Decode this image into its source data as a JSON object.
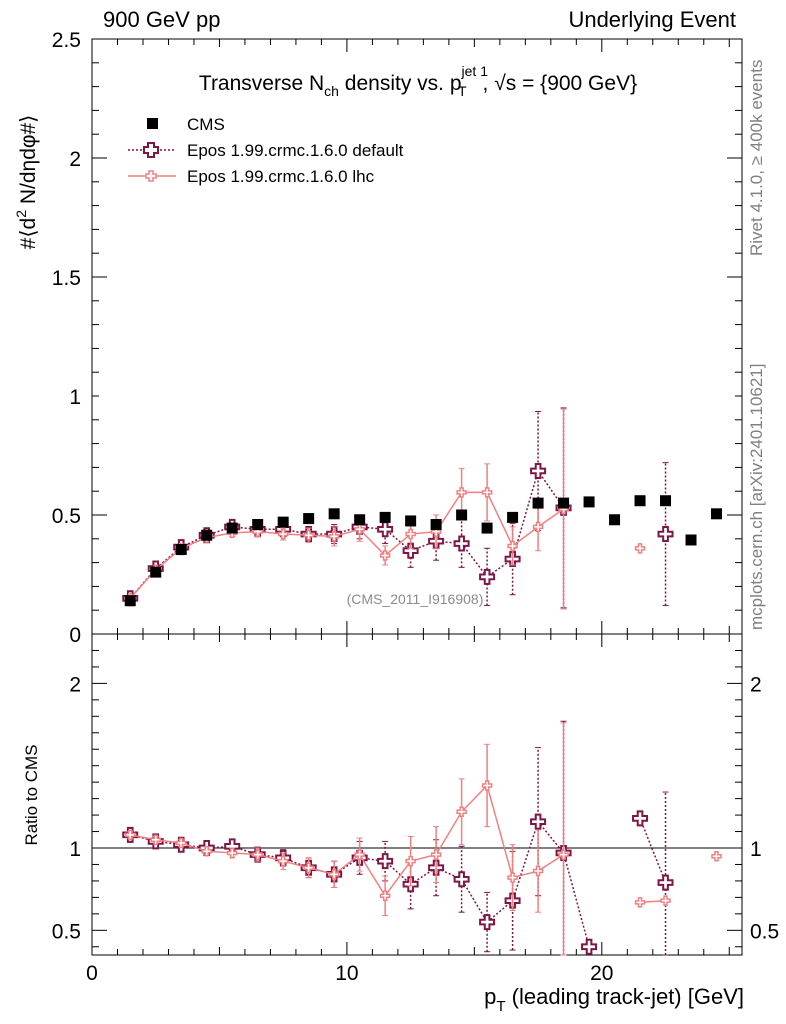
{
  "header": {
    "left": "900 GeV pp",
    "right": "Underlying Event"
  },
  "side_labels": {
    "top": "Rivet 4.1.0, ≥ 400k events",
    "bottom": "mcplots.cern.ch [arXiv:2401.10621]"
  },
  "chart_data": {
    "type": "scatter",
    "title": "Transverse N_ch density vs. p_T^jet 1, √s = {900 GeV}",
    "title_parts": {
      "a": "Transverse N",
      "a_sub": "ch",
      "b": " density vs. p",
      "b_sup": "jet 1",
      "b_sub": "T",
      "c": ", √s = {900 GeV}"
    },
    "ylabel_parts": {
      "pre": "#⟨d",
      "sup": "2",
      "post": " N/dηdφ#⟩"
    },
    "ratio_ylabel": "Ratio to CMS",
    "xlabel_parts": {
      "p": "p",
      "sub": "T",
      "rest": " (leading track-jet) [GeV]"
    },
    "watermark": "(CMS_2011_I916908)",
    "xlim": [
      0,
      25.5
    ],
    "ylim": [
      0,
      2.5
    ],
    "ratio_ylim": [
      0.35,
      2.3
    ],
    "x_ticks": [
      0,
      10,
      20
    ],
    "y_ticks": [
      {
        "v": 0,
        "label": "0"
      },
      {
        "v": 0.5,
        "label": "0.5"
      },
      {
        "v": 1,
        "label": "1"
      },
      {
        "v": 1.5,
        "label": "1.5"
      },
      {
        "v": 2,
        "label": "2"
      },
      {
        "v": 2.5,
        "label": "2.5"
      }
    ],
    "ratio_ticks": [
      {
        "v": 0.5,
        "label": "0.5"
      },
      {
        "v": 1,
        "label": "1"
      },
      {
        "v": 2,
        "label": "2"
      }
    ],
    "legend": [
      {
        "name": "CMS"
      },
      {
        "name": "Epos 1.99.crmc.1.6.0 default"
      },
      {
        "name": "Epos 1.99.crmc.1.6.0 lhc"
      }
    ],
    "x": [
      1.5,
      2.5,
      3.5,
      4.5,
      5.5,
      6.5,
      7.5,
      8.5,
      9.5,
      10.5,
      11.5,
      12.5,
      13.5,
      14.5,
      15.5,
      16.5,
      17.5,
      18.5,
      19.5,
      20.5,
      21.5,
      22.5,
      23.5,
      24.5
    ],
    "series": [
      {
        "name": "CMS",
        "color": "#000000",
        "values": [
          0.14,
          0.26,
          0.355,
          0.415,
          0.445,
          0.46,
          0.47,
          0.485,
          0.505,
          0.48,
          0.49,
          0.475,
          0.46,
          0.5,
          0.445,
          0.49,
          0.55,
          0.55,
          0.555,
          0.48,
          0.56,
          0.56,
          0.395,
          0.505
        ],
        "ratio": null,
        "errors": null
      },
      {
        "name": "Epos 1.99.crmc.1.6.0 default",
        "color": "#7b1646",
        "values": [
          0.15,
          0.275,
          0.365,
          0.415,
          0.45,
          0.44,
          0.44,
          0.42,
          0.42,
          0.45,
          0.44,
          0.35,
          0.39,
          0.38,
          0.24,
          0.315,
          0.685,
          0.53,
          null,
          null,
          null,
          0.42,
          null,
          null
        ],
        "errors": [
          0.01,
          0.01,
          0.01,
          0.01,
          0.015,
          0.02,
          0.025,
          0.03,
          0.04,
          0.05,
          0.06,
          0.07,
          0.08,
          0.1,
          0.12,
          0.15,
          0.25,
          0.42,
          null,
          null,
          null,
          0.3,
          null,
          null
        ],
        "ratio": [
          1.08,
          1.04,
          1.02,
          1.0,
          1.01,
          0.96,
          0.94,
          0.88,
          0.84,
          0.94,
          0.92,
          0.78,
          0.88,
          0.81,
          0.55,
          0.68,
          1.16,
          0.97,
          0.4,
          null,
          1.18,
          0.79,
          null,
          null
        ],
        "ratio_errors": [
          0.02,
          0.02,
          0.02,
          0.02,
          0.03,
          0.04,
          0.05,
          0.06,
          0.08,
          0.1,
          0.12,
          0.15,
          0.17,
          0.2,
          0.18,
          0.3,
          0.45,
          0.8,
          null,
          null,
          null,
          0.55,
          null,
          null
        ]
      },
      {
        "name": "Epos 1.99.crmc.1.6.0 lhc",
        "color": "#f08080",
        "values": [
          0.15,
          0.27,
          0.36,
          0.405,
          0.425,
          0.43,
          0.42,
          0.415,
          0.41,
          0.44,
          0.33,
          0.42,
          0.43,
          0.595,
          0.595,
          0.37,
          0.45,
          0.525,
          null,
          null,
          0.36,
          null,
          null,
          null
        ],
        "errors": [
          0.01,
          0.01,
          0.01,
          0.01,
          0.015,
          0.02,
          0.025,
          0.03,
          0.04,
          0.05,
          0.04,
          0.06,
          0.07,
          0.1,
          0.12,
          0.08,
          0.1,
          0.42,
          null,
          null,
          null,
          null,
          null,
          null
        ],
        "ratio": [
          1.08,
          1.05,
          1.03,
          0.98,
          0.97,
          0.96,
          0.92,
          0.88,
          0.84,
          0.96,
          0.71,
          0.92,
          0.96,
          1.22,
          1.38,
          0.82,
          0.86,
          0.96,
          null,
          null,
          0.67,
          0.68,
          null,
          0.95
        ],
        "ratio_errors": [
          0.02,
          0.02,
          0.02,
          0.02,
          0.03,
          0.04,
          0.05,
          0.06,
          0.08,
          0.1,
          0.12,
          0.15,
          0.17,
          0.2,
          0.25,
          0.2,
          0.25,
          0.8,
          null,
          null,
          null,
          null,
          null,
          null
        ]
      }
    ]
  }
}
